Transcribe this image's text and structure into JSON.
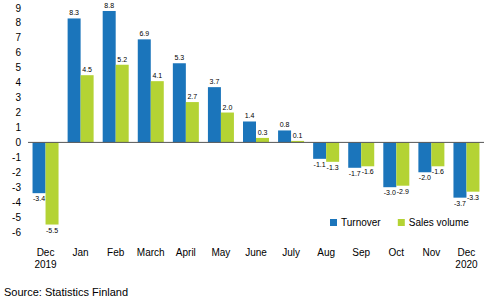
{
  "chart_data": {
    "type": "bar",
    "categories": [
      "Dec\n2019",
      "Jan",
      "Feb",
      "March",
      "April",
      "May",
      "June",
      "July",
      "Aug",
      "Sep",
      "Oct",
      "Nov",
      "Dec\n2020"
    ],
    "series": [
      {
        "name": "Turnover",
        "color": "#1b75bb",
        "values": [
          -3.4,
          8.3,
          8.8,
          6.9,
          5.3,
          3.7,
          1.4,
          0.8,
          -1.1,
          -1.7,
          -3.0,
          -2.0,
          -3.7
        ],
        "value_labels": [
          "-3.4",
          "8.3",
          "8.8",
          "6.9",
          "5.3",
          "3.7",
          "1.4",
          "0.8",
          "-1.1",
          "-1.7",
          "-3.0",
          "-2.0",
          "-3.7"
        ]
      },
      {
        "name": "Sales volume",
        "color": "#b4d334",
        "values": [
          -5.5,
          4.5,
          5.2,
          4.1,
          2.7,
          2.0,
          0.3,
          0.1,
          -1.3,
          -1.6,
          -2.9,
          -1.6,
          -3.3
        ],
        "value_labels": [
          "-5.5",
          "4.5",
          "5.2",
          "4.1",
          "2.7",
          "2.0",
          "0.3",
          "0.1",
          "-1.3",
          "-1.6",
          "-2.9",
          "-1.6",
          "-3.3"
        ]
      }
    ],
    "ylim": [
      -6,
      9
    ],
    "yticks": [
      -6,
      -5,
      -4,
      -3,
      -2,
      -1,
      0,
      1,
      2,
      3,
      4,
      5,
      6,
      7,
      8,
      9
    ],
    "grid": false,
    "legend": "lower right",
    "data_labels": true,
    "annotations": [
      "Source: Statistics Finland"
    ]
  }
}
